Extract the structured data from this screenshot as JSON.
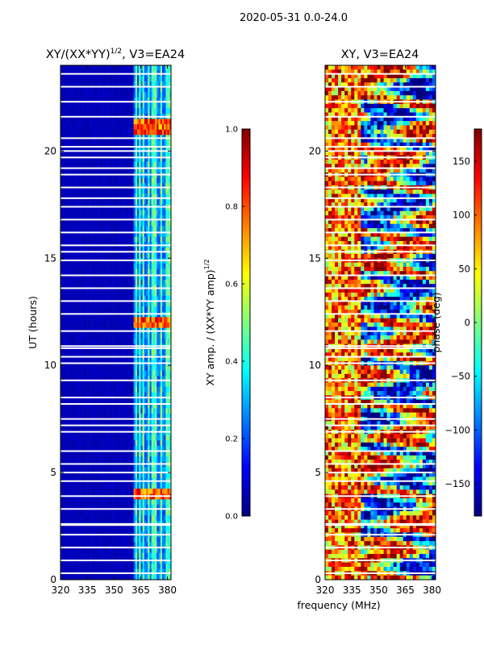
{
  "figure": {
    "suptitle": "2020-05-31 0.0-24.0",
    "shared_xlabel": "frequency (MHz)"
  },
  "colors": {
    "jet": [
      "#00007f",
      "#0000ff",
      "#007fff",
      "#00ffff",
      "#7fff7f",
      "#ffff00",
      "#ff7f00",
      "#ff0000",
      "#7f0000"
    ]
  },
  "chart_data": [
    {
      "type": "heatmap",
      "title_main": "XY/(XX*YY)",
      "title_sup": "1/2",
      "title_rest": ", V3=EA24",
      "xlabel": "",
      "ylabel": "UT (hours)",
      "xlim": [
        320,
        382
      ],
      "ylim": [
        0,
        24
      ],
      "xticks": [
        320,
        335,
        350,
        365,
        380
      ],
      "yticks": [
        0,
        5,
        10,
        15,
        20
      ],
      "bright_channels_mhz": [
        362.5,
        364.5,
        366.5,
        369.5,
        372,
        373.5,
        376.5,
        379.5,
        381
      ],
      "noisy_hours": [
        4.0,
        11.8,
        12.1,
        21.0,
        21.4
      ],
      "gap_hours": [
        0.3,
        0.9,
        1.5,
        2.1,
        2.55,
        2.6,
        3.3,
        3.9,
        4.6,
        5.0,
        5.4,
        6.0,
        6.9,
        7.2,
        7.5,
        8.2,
        8.5,
        9.3,
        10.1,
        10.4,
        10.8,
        10.9,
        11.6,
        12.4,
        13.0,
        13.6,
        14.2,
        14.9,
        15.3,
        15.6,
        16.2,
        16.8,
        17.4,
        17.8,
        18.3,
        18.9,
        19.2,
        19.7,
        20.0,
        20.2,
        20.6,
        21.6,
        22.3,
        23.0,
        23.6
      ],
      "colorbar": {
        "label_main": "XY amp. / (XX*YY amp)",
        "label_sup": "1/2",
        "range": [
          0.0,
          1.0
        ],
        "ticks": [
          "0.0",
          "0.2",
          "0.4",
          "0.6",
          "0.8",
          "1.0"
        ]
      }
    },
    {
      "type": "heatmap",
      "title": "XY, V3=EA24",
      "xlabel": "",
      "ylabel": "",
      "xlim": [
        320,
        382
      ],
      "ylim": [
        0,
        24
      ],
      "xticks": [
        320,
        335,
        350,
        365,
        380
      ],
      "yticks": [
        0,
        5,
        10,
        15,
        20
      ],
      "gap_hours": [
        0.3,
        0.9,
        1.5,
        2.1,
        2.55,
        2.6,
        3.3,
        3.9,
        4.6,
        5.0,
        5.4,
        6.0,
        6.9,
        7.2,
        7.5,
        8.2,
        8.5,
        9.3,
        10.1,
        10.4,
        10.8,
        10.9,
        11.6,
        12.4,
        13.0,
        13.6,
        14.2,
        14.9,
        15.3,
        15.6,
        16.2,
        16.8,
        17.4,
        17.8,
        18.3,
        18.9,
        19.2,
        19.7,
        20.0,
        20.2,
        20.6,
        21.6,
        22.3,
        23.0,
        23.6
      ],
      "colorbar": {
        "label": "phase (deg)",
        "range": [
          -180,
          180
        ],
        "ticks": [
          "150",
          "100",
          "50",
          "0",
          "−50",
          "−100",
          "−150"
        ],
        "tick_values": [
          150,
          100,
          50,
          0,
          -50,
          -100,
          -150
        ]
      }
    }
  ]
}
